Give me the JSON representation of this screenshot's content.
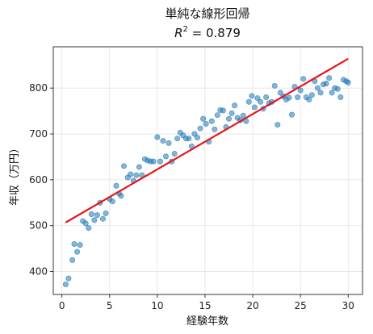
{
  "chart_data": {
    "type": "scatter",
    "title_line1": "単純な線形回帰",
    "title_line2_symbol": "R",
    "title_line2_exponent": "2",
    "title_line2_value": " = 0.879",
    "xlabel": "経験年数",
    "ylabel": "年収（万円）",
    "xlim": [
      -0.9,
      31.5
    ],
    "ylim": [
      350,
      890
    ],
    "xticks": [
      0,
      5,
      10,
      15,
      20,
      25,
      30
    ],
    "yticks": [
      400,
      500,
      600,
      700,
      800
    ],
    "grid": true,
    "colors": {
      "points": "#1f77b4",
      "fit_line": "#e8141b"
    },
    "scatter": {
      "x": [
        0.4,
        0.7,
        1.1,
        1.3,
        1.6,
        1.9,
        2.2,
        2.5,
        2.8,
        3.1,
        3.4,
        3.7,
        4.0,
        4.3,
        4.6,
        5.0,
        5.3,
        5.7,
        6.0,
        6.2,
        6.5,
        6.9,
        7.2,
        7.5,
        7.8,
        8.1,
        8.4,
        8.7,
        9.0,
        9.3,
        9.6,
        10.0,
        10.3,
        10.6,
        10.9,
        11.2,
        11.5,
        11.8,
        12.1,
        12.4,
        12.7,
        13.0,
        13.3,
        13.6,
        13.9,
        14.2,
        14.5,
        14.8,
        15.1,
        15.4,
        15.7,
        16.0,
        16.3,
        16.6,
        16.9,
        17.2,
        17.5,
        17.8,
        18.1,
        18.4,
        18.7,
        19.0,
        19.3,
        19.6,
        19.9,
        20.2,
        20.5,
        20.8,
        21.1,
        21.4,
        21.7,
        22.0,
        22.3,
        22.6,
        22.9,
        23.2,
        23.5,
        23.8,
        24.1,
        24.4,
        24.7,
        25.0,
        25.3,
        25.6,
        25.9,
        26.2,
        26.5,
        26.8,
        27.1,
        27.4,
        27.7,
        28.0,
        28.3,
        28.6,
        28.9,
        29.2,
        29.5,
        29.8,
        30.0
      ],
      "y": [
        372,
        385,
        425,
        460,
        443,
        458,
        510,
        505,
        495,
        525,
        512,
        523,
        550,
        515,
        527,
        558,
        553,
        587,
        570,
        565,
        630,
        605,
        612,
        598,
        610,
        628,
        610,
        645,
        642,
        640,
        640,
        693,
        640,
        685,
        651,
        680,
        640,
        657,
        690,
        703,
        697,
        690,
        690,
        673,
        700,
        692,
        712,
        733,
        722,
        683,
        728,
        710,
        741,
        752,
        751,
        715,
        733,
        745,
        762,
        735,
        730,
        740,
        728,
        770,
        783,
        758,
        778,
        770,
        755,
        780,
        767,
        770,
        805,
        720,
        790,
        782,
        775,
        779,
        742,
        803,
        780,
        795,
        820,
        780,
        775,
        785,
        815,
        800,
        790,
        808,
        810,
        822,
        790,
        800,
        798,
        780,
        818,
        815,
        812
      ],
      "radius": 3.2,
      "alpha": 0.55
    },
    "fit_line": {
      "x": [
        0.4,
        30.0
      ],
      "y": [
        507,
        864
      ]
    }
  }
}
